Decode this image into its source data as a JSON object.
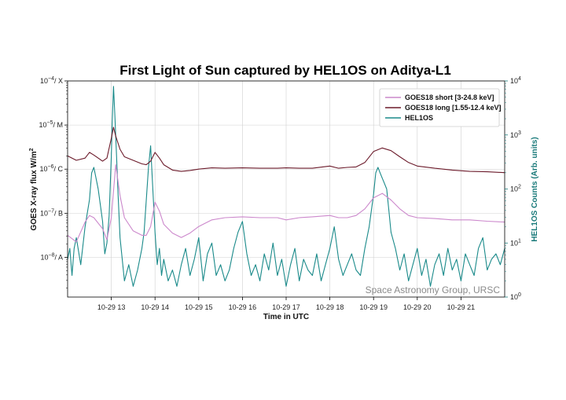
{
  "chart_data": {
    "type": "line",
    "title": "First Light of Sun captured by HEL1OS on Aditya-L1",
    "xlabel": "Time in UTC",
    "ylabel_left": "GOES X-ray flux W/m",
    "ylabel_left_sup": "2",
    "ylabel_right": "HEL1OS Counts (Arb. units)",
    "xlim": [
      12.0,
      22.0
    ],
    "ylim_left": [
      -8.9,
      -4.0
    ],
    "ylim_right": [
      0.0,
      4.0
    ],
    "x_ticks": [
      {
        "value": 13,
        "label": "10-29 13"
      },
      {
        "value": 14,
        "label": "10-29 14"
      },
      {
        "value": 15,
        "label": "10-29 15"
      },
      {
        "value": 16,
        "label": "10-29 16"
      },
      {
        "value": 17,
        "label": "10-29 17"
      },
      {
        "value": 18,
        "label": "10-29 18"
      },
      {
        "value": 19,
        "label": "10-29 19"
      },
      {
        "value": 20,
        "label": "10-29 20"
      },
      {
        "value": 21,
        "label": "10-29 21"
      }
    ],
    "y_ticks_left": [
      {
        "value": -4,
        "base": "10",
        "exp": "−4",
        "suffix": "/ X"
      },
      {
        "value": -5,
        "base": "10",
        "exp": "−5",
        "suffix": "/ M"
      },
      {
        "value": -6,
        "base": "10",
        "exp": "−6",
        "suffix": "/ C"
      },
      {
        "value": -7,
        "base": "10",
        "exp": "−7",
        "suffix": "/ B"
      },
      {
        "value": -8,
        "base": "10",
        "exp": "−8",
        "suffix": "/ A"
      }
    ],
    "y_ticks_right": [
      {
        "value": 0,
        "base": "10",
        "exp": "0"
      },
      {
        "value": 1,
        "base": "10",
        "exp": "1"
      },
      {
        "value": 2,
        "base": "10",
        "exp": "2"
      },
      {
        "value": 3,
        "base": "10",
        "exp": "3"
      },
      {
        "value": 4,
        "base": "10",
        "exp": "4"
      }
    ],
    "grid": true,
    "legend_position": "top-right",
    "annotation": "Space Astronomy Group, URSC",
    "series": [
      {
        "name": "GOES18 short  [3-24.8 keV]",
        "axis": "left",
        "color": "#cc88cc",
        "x": [
          12.0,
          12.2,
          12.4,
          12.5,
          12.6,
          12.8,
          12.9,
          13.0,
          13.05,
          13.1,
          13.2,
          13.3,
          13.5,
          13.7,
          13.8,
          13.9,
          14.0,
          14.1,
          14.2,
          14.4,
          14.6,
          14.8,
          15.0,
          15.3,
          15.6,
          16.0,
          16.4,
          16.8,
          17.0,
          17.3,
          17.6,
          18.0,
          18.2,
          18.4,
          18.6,
          18.8,
          19.0,
          19.2,
          19.4,
          19.6,
          19.8,
          20.0,
          20.4,
          20.8,
          21.2,
          21.6,
          22.0
        ],
        "y": [
          -7.5,
          -7.65,
          -7.2,
          -7.05,
          -7.1,
          -7.35,
          -7.6,
          -7.1,
          -6.5,
          -5.9,
          -6.6,
          -7.1,
          -7.4,
          -7.5,
          -7.5,
          -7.3,
          -6.75,
          -6.95,
          -7.25,
          -7.45,
          -7.55,
          -7.45,
          -7.3,
          -7.15,
          -7.1,
          -7.08,
          -7.1,
          -7.1,
          -7.15,
          -7.1,
          -7.08,
          -7.05,
          -7.1,
          -7.1,
          -7.05,
          -6.9,
          -6.65,
          -6.55,
          -6.7,
          -6.9,
          -7.05,
          -7.1,
          -7.12,
          -7.15,
          -7.15,
          -7.18,
          -7.2
        ]
      },
      {
        "name": "GOES18 long  [1.55-12.4 keV]",
        "axis": "left",
        "color": "#6b1a2a",
        "x": [
          12.0,
          12.2,
          12.4,
          12.5,
          12.6,
          12.8,
          12.9,
          13.0,
          13.05,
          13.1,
          13.2,
          13.3,
          13.5,
          13.7,
          13.8,
          13.9,
          14.0,
          14.1,
          14.2,
          14.4,
          14.6,
          14.8,
          15.0,
          15.3,
          15.6,
          16.0,
          16.4,
          16.8,
          17.0,
          17.3,
          17.6,
          18.0,
          18.2,
          18.4,
          18.6,
          18.8,
          19.0,
          19.2,
          19.4,
          19.6,
          19.8,
          20.0,
          20.4,
          20.8,
          21.2,
          21.6,
          22.0
        ],
        "y": [
          -5.7,
          -5.8,
          -5.75,
          -5.62,
          -5.68,
          -5.82,
          -5.75,
          -5.3,
          -5.05,
          -5.25,
          -5.55,
          -5.72,
          -5.8,
          -5.88,
          -5.9,
          -5.82,
          -5.62,
          -5.75,
          -5.9,
          -6.02,
          -6.05,
          -6.03,
          -6.0,
          -5.97,
          -5.98,
          -5.97,
          -5.98,
          -5.98,
          -5.97,
          -5.98,
          -5.98,
          -5.93,
          -5.98,
          -5.96,
          -5.95,
          -5.85,
          -5.6,
          -5.52,
          -5.58,
          -5.72,
          -5.85,
          -5.93,
          -5.98,
          -6.02,
          -6.05,
          -6.06,
          -6.08
        ]
      },
      {
        "name": "HEL1OS",
        "axis": "right",
        "color": "#1a8a8a",
        "x": [
          12.0,
          12.05,
          12.1,
          12.15,
          12.2,
          12.3,
          12.4,
          12.5,
          12.55,
          12.6,
          12.7,
          12.75,
          12.8,
          12.85,
          12.9,
          12.95,
          13.0,
          13.02,
          13.05,
          13.08,
          13.12,
          13.15,
          13.2,
          13.3,
          13.4,
          13.5,
          13.6,
          13.7,
          13.75,
          13.8,
          13.85,
          13.9,
          13.95,
          14.0,
          14.05,
          14.1,
          14.15,
          14.2,
          14.3,
          14.4,
          14.5,
          14.6,
          14.7,
          14.8,
          14.9,
          15.0,
          15.1,
          15.2,
          15.3,
          15.4,
          15.5,
          15.6,
          15.7,
          15.8,
          15.9,
          16.0,
          16.1,
          16.2,
          16.3,
          16.4,
          16.5,
          16.6,
          16.7,
          16.8,
          16.9,
          17.0,
          17.1,
          17.2,
          17.3,
          17.4,
          17.5,
          17.6,
          17.7,
          17.8,
          17.9,
          18.0,
          18.1,
          18.2,
          18.3,
          18.4,
          18.5,
          18.6,
          18.7,
          18.8,
          18.9,
          19.0,
          19.05,
          19.1,
          19.15,
          19.2,
          19.25,
          19.3,
          19.35,
          19.4,
          19.5,
          19.6,
          19.7,
          19.8,
          19.9,
          20.0,
          20.1,
          20.2,
          20.3,
          20.4,
          20.5,
          20.6,
          20.7,
          20.8,
          20.9,
          21.0,
          21.1,
          21.2,
          21.3,
          21.4,
          21.5,
          21.6,
          21.7,
          21.8,
          21.9,
          22.0
        ],
        "y": [
          0.7,
          0.9,
          0.4,
          0.9,
          1.1,
          0.6,
          1.3,
          1.8,
          2.3,
          2.4,
          2.0,
          1.7,
          1.4,
          0.8,
          1.0,
          1.5,
          2.6,
          3.2,
          3.9,
          3.4,
          2.6,
          2.0,
          1.1,
          0.3,
          0.6,
          0.2,
          0.5,
          0.9,
          1.2,
          1.8,
          2.4,
          2.8,
          2.0,
          1.2,
          0.6,
          0.9,
          0.4,
          0.7,
          0.3,
          0.5,
          0.2,
          0.6,
          0.9,
          0.4,
          0.7,
          1.1,
          0.3,
          0.8,
          1.0,
          0.4,
          0.6,
          0.3,
          0.5,
          0.9,
          1.2,
          1.4,
          0.8,
          0.4,
          0.6,
          0.3,
          0.8,
          0.5,
          1.0,
          0.4,
          0.7,
          0.2,
          0.6,
          0.9,
          0.3,
          0.7,
          0.5,
          0.4,
          0.8,
          0.3,
          0.6,
          0.9,
          1.3,
          0.7,
          0.4,
          0.6,
          0.8,
          0.5,
          0.4,
          0.9,
          1.3,
          1.9,
          2.3,
          2.4,
          2.3,
          2.2,
          2.1,
          2.0,
          1.6,
          1.2,
          0.9,
          0.5,
          0.8,
          0.3,
          0.6,
          0.9,
          0.4,
          0.7,
          0.2,
          0.6,
          0.8,
          0.4,
          0.9,
          0.5,
          0.7,
          0.3,
          0.8,
          0.6,
          0.4,
          0.9,
          1.1,
          0.5,
          0.7,
          0.8,
          0.6,
          0.9
        ]
      }
    ]
  }
}
